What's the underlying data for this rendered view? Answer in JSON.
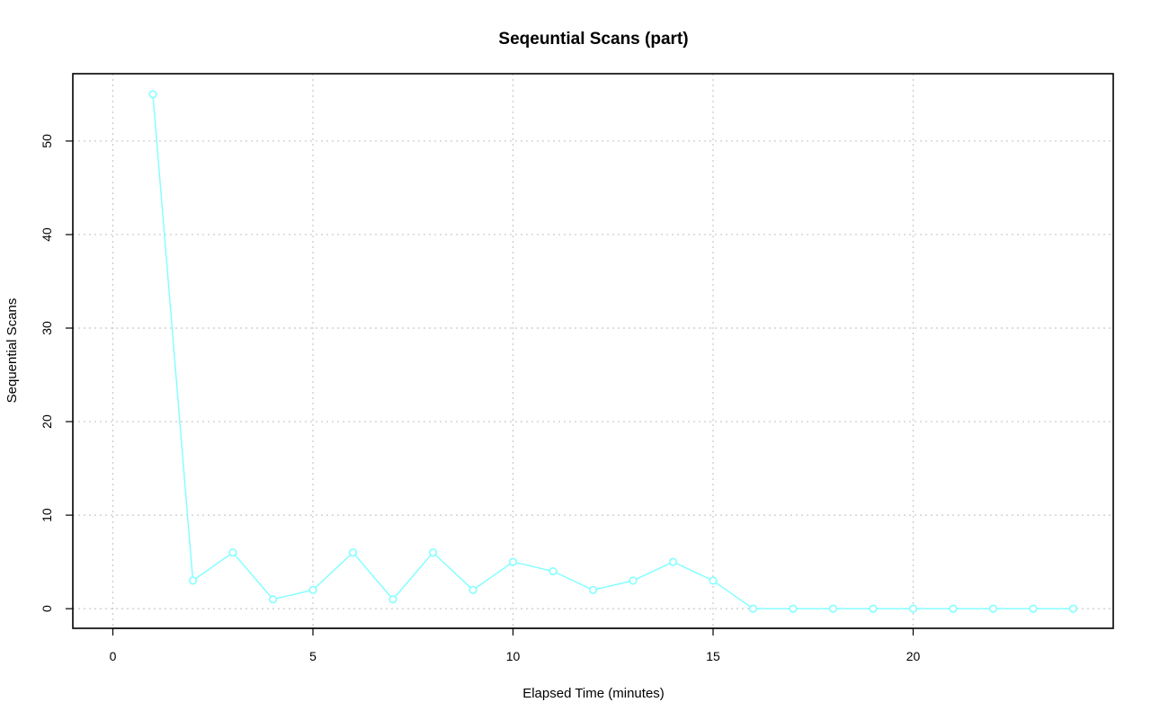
{
  "chart_data": {
    "type": "line",
    "title": "Seqeuntial Scans (part)",
    "xlabel": "Elapsed Time (minutes)",
    "ylabel": "Sequential Scans",
    "xlim": [
      -1,
      25
    ],
    "ylim": [
      -2.1,
      57.2
    ],
    "xticks": [
      0,
      5,
      10,
      15,
      20
    ],
    "yticks": [
      0,
      10,
      20,
      30,
      40,
      50
    ],
    "grid": true,
    "series_color": "#7fffff",
    "x": [
      1,
      2,
      3,
      4,
      5,
      6,
      7,
      8,
      9,
      10,
      11,
      12,
      13,
      14,
      15,
      16,
      17,
      18,
      19,
      20,
      21,
      22,
      23,
      24
    ],
    "y": [
      55,
      3,
      6,
      1,
      2,
      6,
      1,
      6,
      2,
      5,
      4,
      2,
      3,
      5,
      3,
      0,
      0,
      0,
      0,
      0,
      0,
      0,
      0,
      0
    ]
  }
}
